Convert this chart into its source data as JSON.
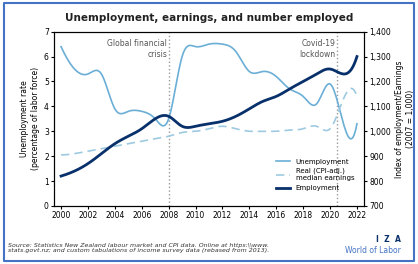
{
  "title": "Unemployment, earnings, and number employed",
  "xlabel": "",
  "ylabel_left": "Unemployment rate\n(percentage of labor force)",
  "ylabel_right": "Index of employment/Earnings\n(2007 = 1,000)",
  "ylim_left": [
    0,
    7
  ],
  "ylim_right": [
    700,
    1400
  ],
  "yticks_left": [
    0,
    1,
    2,
    3,
    4,
    5,
    6,
    7
  ],
  "yticks_right": [
    700,
    800,
    900,
    1000,
    1100,
    1200,
    1300,
    1400
  ],
  "source_text": "Source: Statistics New Zealand labour market and CPI data. Online at https:\\\\www.\nstats.govt.nz; and custom tabulations of income survey data (rebased from 2013).",
  "vline1_x": 2008,
  "vline1_label": "Global financial\ncrisis",
  "vline2_x": 2020.5,
  "vline2_label": "Covid-19\nlockdown",
  "color_unemployment": "#6baed6",
  "color_earnings": "#9ecae1",
  "color_employment": "#08306b",
  "unemployment_x": [
    2000,
    2001,
    2002,
    2003,
    2004,
    2005,
    2006,
    2007,
    2008,
    2009,
    2010,
    2011,
    2012,
    2013,
    2014,
    2015,
    2016,
    2017,
    2018,
    2019,
    2020,
    2021,
    2022
  ],
  "unemployment_y": [
    6.4,
    5.5,
    5.3,
    5.3,
    3.9,
    3.8,
    3.8,
    3.5,
    3.5,
    6.0,
    6.4,
    6.5,
    6.5,
    6.2,
    5.4,
    5.4,
    5.2,
    4.7,
    4.4,
    4.1,
    4.9,
    3.3,
    3.3
  ],
  "earnings_x": [
    2000,
    2001,
    2002,
    2003,
    2004,
    2005,
    2006,
    2007,
    2008,
    2009,
    2010,
    2011,
    2012,
    2013,
    2014,
    2015,
    2016,
    2017,
    2018,
    2019,
    2020,
    2021,
    2022
  ],
  "earnings_y": [
    2.05,
    2.1,
    2.2,
    2.3,
    2.4,
    2.5,
    2.6,
    2.7,
    2.8,
    2.95,
    3.0,
    3.1,
    3.2,
    3.1,
    3.0,
    3.0,
    3.0,
    3.05,
    3.1,
    3.2,
    3.1,
    4.3,
    4.4
  ],
  "employment_x": [
    2000,
    2001,
    2002,
    2003,
    2004,
    2005,
    2006,
    2007,
    2008,
    2009,
    2010,
    2011,
    2012,
    2013,
    2014,
    2015,
    2016,
    2017,
    2018,
    2019,
    2020,
    2021,
    2022
  ],
  "employment_y": [
    820,
    840,
    870,
    910,
    950,
    980,
    1010,
    1050,
    1060,
    1020,
    1020,
    1030,
    1040,
    1060,
    1090,
    1120,
    1140,
    1170,
    1200,
    1230,
    1250,
    1230,
    1300
  ],
  "xticks": [
    2000,
    2002,
    2004,
    2006,
    2008,
    2010,
    2012,
    2014,
    2016,
    2018,
    2020,
    2022
  ],
  "xlim": [
    1999.5,
    2022.5
  ],
  "background_color": "#ffffff",
  "border_color": "#4472c4",
  "iza_color": "#08306b",
  "wol_color": "#4472c4"
}
